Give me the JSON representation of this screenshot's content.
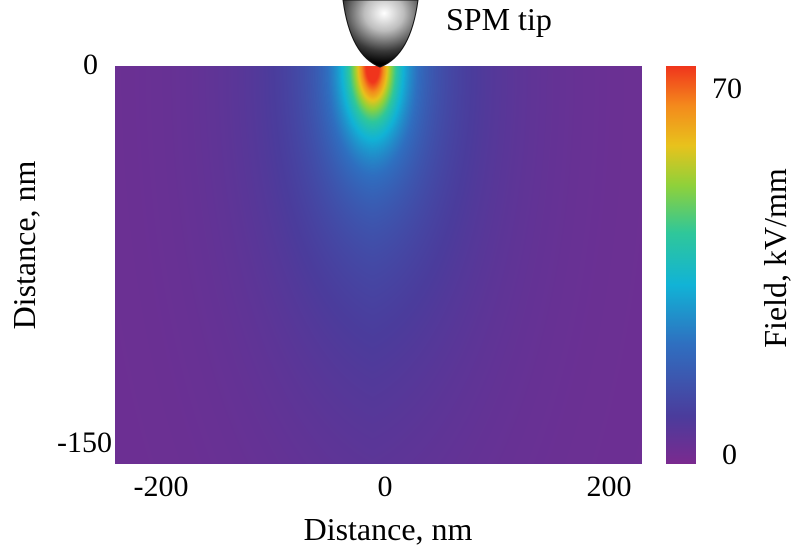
{
  "chart_data": {
    "type": "heatmap",
    "title": "",
    "annotation": "SPM tip",
    "xlabel": "Distance, nm",
    "ylabel": "Distance, nm",
    "xlim": [
      -230,
      230
    ],
    "ylim": [
      -150,
      0
    ],
    "x_ticks": [
      -200,
      0,
      200
    ],
    "x_tick_labels": [
      "-200",
      "0",
      "200"
    ],
    "y_ticks": [
      0,
      -150
    ],
    "y_tick_labels": [
      "0",
      "-150"
    ],
    "colorbar": {
      "label": "Field, kV/mm",
      "min": 0,
      "max": 70,
      "tick_labels": [
        "70",
        "0"
      ],
      "colormap": [
        "#7a2a8f",
        "#4b3c9c",
        "#2f6fc0",
        "#11b3d6",
        "#2fc79a",
        "#8fd13a",
        "#e8c21c",
        "#f48a1c",
        "#f0341c"
      ]
    },
    "field_model": {
      "peak_value": 70,
      "peak_position_nm": [
        -5,
        0
      ],
      "description_values": {
        "near_tip_radius_nm": 20,
        "background_value": 2
      }
    }
  }
}
